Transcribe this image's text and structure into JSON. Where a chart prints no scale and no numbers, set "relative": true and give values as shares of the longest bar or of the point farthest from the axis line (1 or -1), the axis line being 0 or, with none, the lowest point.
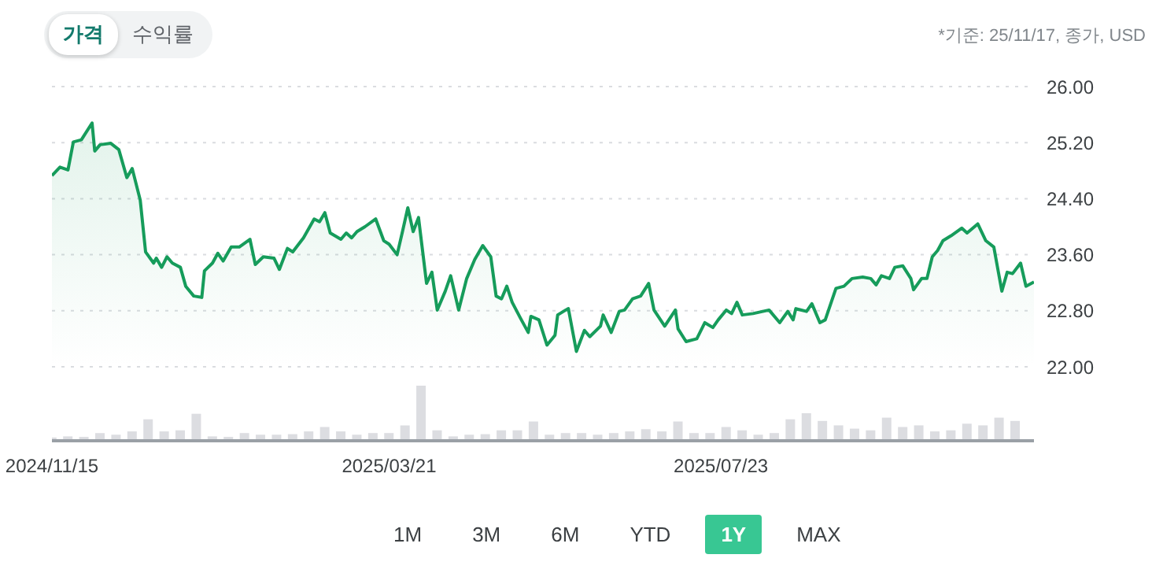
{
  "chart_data": [
    {
      "type": "area",
      "annotations": [
        "가격",
        "수익률",
        "*기준: 25/11/17, 종가, USD",
        "1M",
        "3M",
        "6M",
        "YTD",
        "1Y",
        "MAX"
      ],
      "x": [
        "2024-11-15",
        "2024-11-18",
        "2024-11-21",
        "2024-11-23",
        "2024-11-26",
        "2024-11-30",
        "2024-12-01",
        "2024-12-03",
        "2024-12-07",
        "2024-12-10",
        "2024-12-13",
        "2024-12-15",
        "2024-12-18",
        "2024-12-20",
        "2024-12-23",
        "2024-12-24",
        "2024-12-26",
        "2024-12-28",
        "2024-12-30",
        "2025-01-02",
        "2025-01-04",
        "2025-01-07",
        "2025-01-10",
        "2025-01-11",
        "2025-01-14",
        "2025-01-16",
        "2025-01-18",
        "2025-01-21",
        "2025-01-24",
        "2025-01-28",
        "2025-01-30",
        "2025-02-02",
        "2025-02-06",
        "2025-02-08",
        "2025-02-11",
        "2025-02-13",
        "2025-02-17",
        "2025-02-21",
        "2025-02-23",
        "2025-02-25",
        "2025-02-27",
        "2025-03-03",
        "2025-03-05",
        "2025-03-07",
        "2025-03-09",
        "2025-03-12",
        "2025-03-16",
        "2025-03-19",
        "2025-03-21",
        "2025-03-24",
        "2025-03-26",
        "2025-03-28",
        "2025-03-30",
        "2025-04-01",
        "2025-04-04",
        "2025-04-06",
        "2025-04-08",
        "2025-04-11",
        "2025-04-13",
        "2025-04-16",
        "2025-04-19",
        "2025-04-22",
        "2025-04-25",
        "2025-04-28",
        "2025-04-30",
        "2025-05-02",
        "2025-05-04",
        "2025-05-06",
        "2025-05-09",
        "2025-05-12",
        "2025-05-13",
        "2025-05-16",
        "2025-05-19",
        "2025-05-22",
        "2025-05-23",
        "2025-05-26",
        "2025-05-27",
        "2025-05-30",
        "2025-06-02",
        "2025-06-04",
        "2025-06-08",
        "2025-06-09",
        "2025-06-12",
        "2025-06-15",
        "2025-06-17",
        "2025-06-20",
        "2025-06-23",
        "2025-06-26",
        "2025-06-28",
        "2025-07-02",
        "2025-07-06",
        "2025-07-07",
        "2025-07-10",
        "2025-07-14",
        "2025-07-17",
        "2025-07-20",
        "2025-07-22",
        "2025-07-25",
        "2025-07-27",
        "2025-07-29",
        "2025-07-31",
        "2025-08-04",
        "2025-08-10",
        "2025-08-14",
        "2025-08-17",
        "2025-08-19",
        "2025-08-20",
        "2025-08-24",
        "2025-08-26",
        "2025-08-29",
        "2025-08-31",
        "2025-09-04",
        "2025-09-07",
        "2025-09-10",
        "2025-09-14",
        "2025-09-17",
        "2025-09-19",
        "2025-09-21",
        "2025-09-24",
        "2025-09-26",
        "2025-09-29",
        "2025-10-02",
        "2025-10-03",
        "2025-10-06",
        "2025-10-08",
        "2025-10-10",
        "2025-10-12",
        "2025-10-14",
        "2025-10-17",
        "2025-10-21",
        "2025-10-23",
        "2025-10-27",
        "2025-10-30",
        "2025-11-02",
        "2025-11-05",
        "2025-11-07",
        "2025-11-09",
        "2025-11-12",
        "2025-11-14",
        "2025-11-17"
      ],
      "series": [
        {
          "color": "#169c5b",
          "values": [
            24.73,
            24.85,
            24.81,
            25.21,
            25.24,
            25.48,
            25.08,
            25.17,
            25.19,
            25.1,
            24.7,
            24.83,
            24.38,
            23.64,
            23.48,
            23.55,
            23.42,
            23.57,
            23.48,
            23.42,
            23.15,
            23.01,
            22.99,
            23.37,
            23.48,
            23.62,
            23.51,
            23.71,
            23.71,
            23.82,
            23.46,
            23.57,
            23.55,
            23.39,
            23.69,
            23.64,
            23.84,
            24.11,
            24.07,
            24.2,
            23.91,
            23.82,
            23.91,
            23.84,
            23.93,
            24.0,
            24.11,
            23.8,
            23.75,
            23.6,
            23.93,
            24.27,
            23.93,
            24.13,
            23.19,
            23.35,
            22.81,
            23.08,
            23.3,
            22.81,
            23.26,
            23.53,
            23.73,
            23.57,
            23.01,
            22.97,
            23.15,
            22.92,
            22.7,
            22.49,
            22.72,
            22.67,
            22.31,
            22.45,
            22.74,
            22.81,
            22.83,
            22.22,
            22.52,
            22.43,
            22.58,
            22.74,
            22.49,
            22.79,
            22.81,
            22.97,
            23.01,
            23.19,
            22.81,
            22.58,
            22.81,
            22.54,
            22.36,
            22.4,
            22.63,
            22.56,
            22.67,
            22.81,
            22.76,
            22.92,
            22.74,
            22.76,
            22.81,
            22.63,
            22.79,
            22.67,
            22.83,
            22.79,
            22.9,
            22.63,
            22.67,
            23.12,
            23.15,
            23.26,
            23.28,
            23.26,
            23.17,
            23.3,
            23.26,
            23.42,
            23.44,
            23.26,
            23.1,
            23.26,
            23.26,
            23.57,
            23.66,
            23.8,
            23.87,
            23.98,
            23.91,
            24.04,
            23.8,
            23.71,
            23.08,
            23.35,
            23.33,
            23.48,
            23.15,
            23.21
          ]
        }
      ],
      "xlim": [
        "2024-11-15",
        "2025-11-17"
      ],
      "ylim": [
        22,
        26
      ],
      "yticks": [
        {
          "value": 22,
          "label": "22.00"
        },
        {
          "value": 22.8,
          "label": "22.80"
        },
        {
          "value": 23.6,
          "label": "23.60"
        },
        {
          "value": 24.4,
          "label": "24.40"
        },
        {
          "value": 25.2,
          "label": "25.20"
        },
        {
          "value": 26,
          "label": "26.00"
        }
      ],
      "grid": "y",
      "tick_labels": "y"
    },
    {
      "type": "bar",
      "relative": true,
      "color": "#dcdde1",
      "x": [
        "2024-11-15",
        "2024-11-21",
        "2024-11-27",
        "2024-12-03",
        "2024-12-09",
        "2024-12-15",
        "2024-12-21",
        "2024-12-27",
        "2025-01-02",
        "2025-01-08",
        "2025-01-14",
        "2025-01-20",
        "2025-01-26",
        "2025-02-01",
        "2025-02-07",
        "2025-02-13",
        "2025-02-19",
        "2025-02-25",
        "2025-03-03",
        "2025-03-09",
        "2025-03-15",
        "2025-03-21",
        "2025-03-27",
        "2025-04-02",
        "2025-04-08",
        "2025-04-14",
        "2025-04-20",
        "2025-04-26",
        "2025-05-02",
        "2025-05-08",
        "2025-05-14",
        "2025-05-20",
        "2025-05-26",
        "2025-06-01",
        "2025-06-07",
        "2025-06-13",
        "2025-06-19",
        "2025-06-25",
        "2025-07-01",
        "2025-07-07",
        "2025-07-13",
        "2025-07-19",
        "2025-07-25",
        "2025-07-31",
        "2025-08-06",
        "2025-08-12",
        "2025-08-18",
        "2025-08-24",
        "2025-08-30",
        "2025-09-05",
        "2025-09-11",
        "2025-09-17",
        "2025-09-23",
        "2025-09-29",
        "2025-10-05",
        "2025-10-11",
        "2025-10-17",
        "2025-10-23",
        "2025-10-29",
        "2025-11-04",
        "2025-11-10"
      ],
      "values": [
        0.06,
        0.08,
        0.07,
        0.14,
        0.11,
        0.17,
        0.39,
        0.17,
        0.19,
        0.49,
        0.08,
        0.07,
        0.14,
        0.11,
        0.11,
        0.12,
        0.17,
        0.25,
        0.17,
        0.11,
        0.14,
        0.14,
        0.28,
        1,
        0.19,
        0.08,
        0.11,
        0.12,
        0.19,
        0.19,
        0.35,
        0.11,
        0.14,
        0.14,
        0.11,
        0.14,
        0.17,
        0.21,
        0.17,
        0.35,
        0.14,
        0.14,
        0.25,
        0.19,
        0.11,
        0.14,
        0.39,
        0.5,
        0.36,
        0.28,
        0.22,
        0.19,
        0.42,
        0.25,
        0.28,
        0.17,
        0.19,
        0.31,
        0.28,
        0.42,
        0.36
      ],
      "xlim": [
        "2024-11-15",
        "2025-11-17"
      ],
      "xticks": [
        {
          "value": "2024-11-15",
          "label": "2024/11/15"
        },
        {
          "value": "2025-03-21",
          "label": "2025/03/21"
        },
        {
          "value": "2025-07-23",
          "label": "2025/07/23"
        }
      ],
      "tick_labels": "x"
    }
  ]
}
